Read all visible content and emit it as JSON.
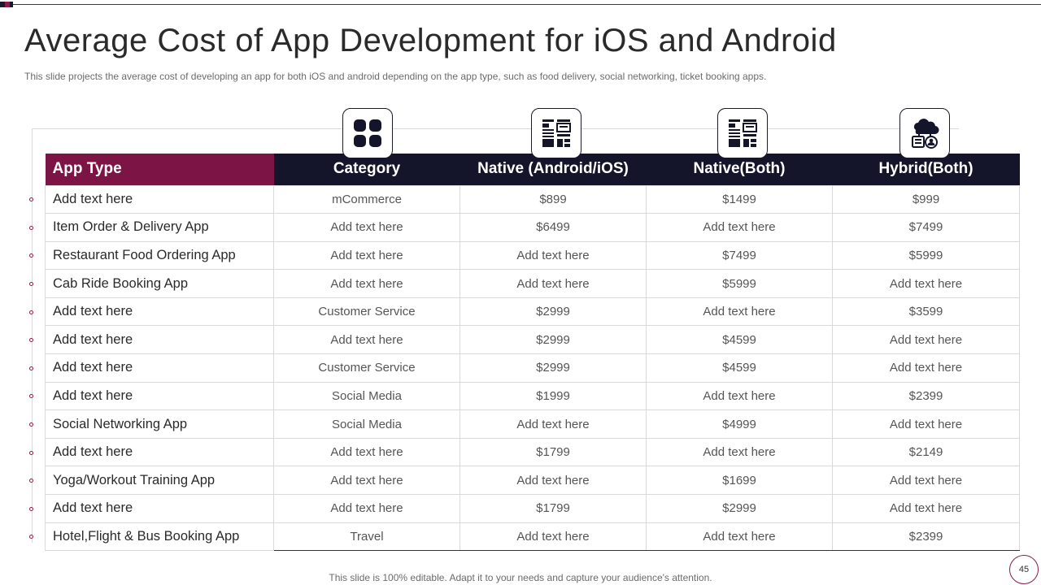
{
  "slide": {
    "title": "Average Cost of App Development for iOS and Android",
    "subtitle": "This slide projects the average cost of developing an app for both iOS and android depending on the app type,  such as food delivery,  social networking, ticket booking apps.",
    "footer": "This slide is 100% editable. Adapt it to your needs and capture your audience's attention.",
    "page_number": "45"
  },
  "icons": {
    "category": "grid-apps-icon",
    "native_android_ios": "app-layout-icon",
    "native_both": "app-layout-icon",
    "hybrid_both": "cloud-devices-icon"
  },
  "colors": {
    "app_type_header": "#7d1446",
    "header_dark": "#14142b",
    "accent": "#8a1c4a"
  },
  "table": {
    "headers": [
      "App Type",
      "Category",
      "Native (Android/iOS)",
      "Native(Both)",
      "Hybrid(Both)"
    ],
    "rows": [
      [
        "Add text here",
        "mCommerce",
        "$899",
        "$1499",
        "$999"
      ],
      [
        "Item  Order & Delivery App",
        "Add text here",
        "$6499",
        "Add text here",
        "$7499"
      ],
      [
        "Restaurant  Food Ordering App",
        "Add text here",
        "Add text here",
        "$7499",
        "$5999"
      ],
      [
        "Cab Ride Booking App",
        "Add text here",
        "Add text here",
        "$5999",
        "Add text here"
      ],
      [
        "Add text here",
        "Customer Service",
        "$2999",
        "Add text here",
        "$3599"
      ],
      [
        "Add text here",
        "Add text here",
        "$2999",
        "$4599",
        "Add text here"
      ],
      [
        "Add text here",
        "Customer Service",
        "$2999",
        "$4599",
        "Add text here"
      ],
      [
        "Add text here",
        "Social Media",
        "$1999",
        "Add text here",
        "$2399"
      ],
      [
        "Social Networking App",
        "Social Media",
        "Add text here",
        "$4999",
        "Add text here"
      ],
      [
        "Add text here",
        "Add text here",
        "$1799",
        "Add text here",
        "$2149"
      ],
      [
        "Yoga/Workout  Training App",
        "Add text here",
        "Add text here",
        "$1699",
        "Add text here"
      ],
      [
        "Add text here",
        "Add text here",
        "$1799",
        "$2999",
        "Add text here"
      ],
      [
        "Hotel,Flight  & Bus Booking App",
        "Travel",
        "Add text here",
        "Add text here",
        "$2399"
      ]
    ]
  }
}
